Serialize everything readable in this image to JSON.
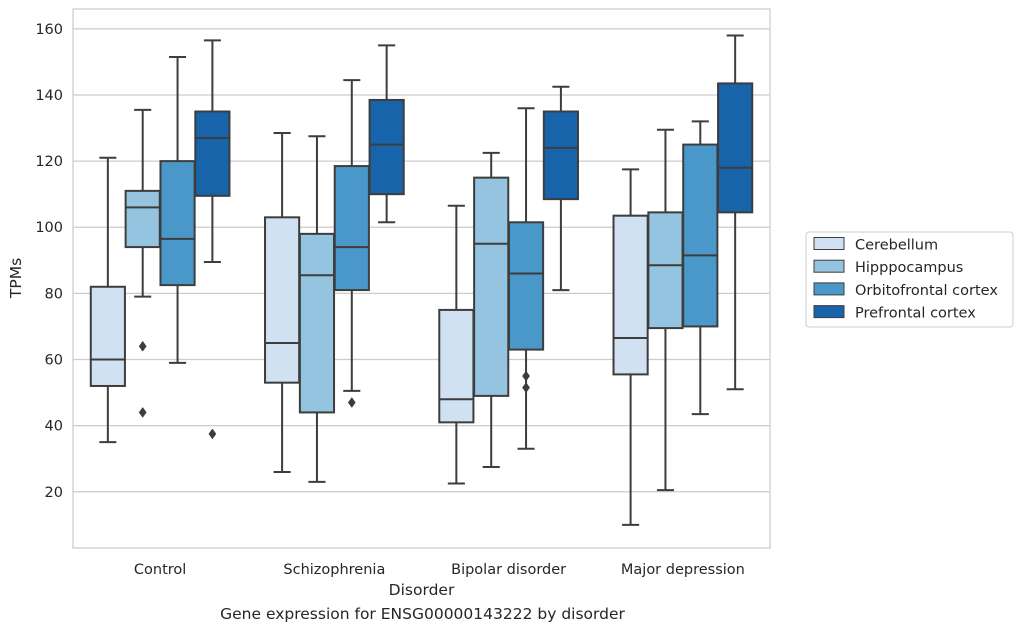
{
  "chart_data": {
    "type": "box",
    "caption": "Gene expression for ENSG00000143222 by disorder",
    "xlabel": "Disorder",
    "ylabel": "TPMs",
    "ylim": [
      3,
      166
    ],
    "yticks": [
      20,
      40,
      60,
      80,
      100,
      120,
      140,
      160
    ],
    "grid": "horizontal",
    "legend_position": "right",
    "categories": [
      "Control",
      "Schizophrenia",
      "Bipolar disorder",
      "Major depression"
    ],
    "series": [
      {
        "name": "Cerebellum",
        "color": "#d0e1f2",
        "boxes": [
          {
            "whislo": 35,
            "q1": 52,
            "med": 60,
            "q3": 82,
            "whishi": 121,
            "fliers": []
          },
          {
            "whislo": 26,
            "q1": 53,
            "med": 65,
            "q3": 103,
            "whishi": 128.5,
            "fliers": []
          },
          {
            "whislo": 22.5,
            "q1": 41,
            "med": 48,
            "q3": 75,
            "whishi": 106.5,
            "fliers": []
          },
          {
            "whislo": 10,
            "q1": 55.5,
            "med": 66.5,
            "q3": 103.5,
            "whishi": 117.5,
            "fliers": []
          }
        ]
      },
      {
        "name": "Hipppocampus",
        "color": "#94c4df",
        "boxes": [
          {
            "whislo": 79,
            "q1": 94,
            "med": 106,
            "q3": 111,
            "whishi": 135.5,
            "fliers": [
              64,
              44
            ]
          },
          {
            "whislo": 23,
            "q1": 44,
            "med": 85.5,
            "q3": 98,
            "whishi": 127.5,
            "fliers": []
          },
          {
            "whislo": 27.5,
            "q1": 49,
            "med": 95,
            "q3": 115,
            "whishi": 122.5,
            "fliers": []
          },
          {
            "whislo": 20.5,
            "q1": 69.5,
            "med": 88.5,
            "q3": 104.5,
            "whishi": 129.5,
            "fliers": []
          }
        ]
      },
      {
        "name": "Orbitofrontal cortex",
        "color": "#4a98c9",
        "boxes": [
          {
            "whislo": 59,
            "q1": 82.5,
            "med": 96.5,
            "q3": 120,
            "whishi": 151.5,
            "fliers": []
          },
          {
            "whislo": 50.5,
            "q1": 81,
            "med": 94,
            "q3": 118.5,
            "whishi": 144.5,
            "fliers": [
              47
            ]
          },
          {
            "whislo": 33,
            "q1": 63,
            "med": 86,
            "q3": 101.5,
            "whishi": 136,
            "fliers": [
              55,
              51.5
            ]
          },
          {
            "whislo": 43.5,
            "q1": 70,
            "med": 91.5,
            "q3": 125,
            "whishi": 132,
            "fliers": []
          }
        ]
      },
      {
        "name": "Prefrontal cortex",
        "color": "#1764ab",
        "boxes": [
          {
            "whislo": 89.5,
            "q1": 109.5,
            "med": 127,
            "q3": 135,
            "whishi": 156.5,
            "fliers": [
              37.5
            ]
          },
          {
            "whislo": 101.5,
            "q1": 110,
            "med": 125,
            "q3": 138.5,
            "whishi": 155,
            "fliers": []
          },
          {
            "whislo": 81,
            "q1": 108.5,
            "med": 124,
            "q3": 135,
            "whishi": 142.5,
            "fliers": []
          },
          {
            "whislo": 51,
            "q1": 104.5,
            "med": 118,
            "q3": 143.5,
            "whishi": 158,
            "fliers": []
          }
        ]
      }
    ]
  }
}
